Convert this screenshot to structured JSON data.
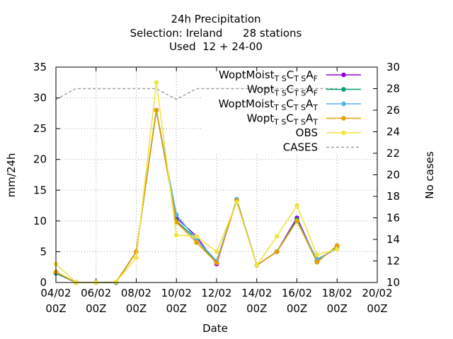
{
  "chart_data": {
    "type": "line",
    "title": [
      "24h Precipitation",
      "Selection: Ireland      28 stations",
      "Used  12 + 24-00"
    ],
    "xlabel": "Date",
    "ylabel": "mm/24h",
    "y2label": "No cases",
    "ylim": [
      0,
      35
    ],
    "y2lim": [
      10,
      30
    ],
    "xlim": [
      0,
      16
    ],
    "xticks": [
      {
        "x": 0,
        "l1": "04/02",
        "l2": "00Z"
      },
      {
        "x": 2,
        "l1": "06/02",
        "l2": "00Z"
      },
      {
        "x": 4,
        "l1": "08/02",
        "l2": "00Z"
      },
      {
        "x": 6,
        "l1": "10/02",
        "l2": "00Z"
      },
      {
        "x": 8,
        "l1": "12/02",
        "l2": "00Z"
      },
      {
        "x": 10,
        "l1": "14/02",
        "l2": "00Z"
      },
      {
        "x": 12,
        "l1": "16/02",
        "l2": "00Z"
      },
      {
        "x": 14,
        "l1": "18/02",
        "l2": "00Z"
      },
      {
        "x": 16,
        "l1": "20/02",
        "l2": "00Z"
      }
    ],
    "yticks": [
      0,
      5,
      10,
      15,
      20,
      25,
      30,
      35
    ],
    "y2ticks": [
      10,
      12,
      14,
      16,
      18,
      20,
      22,
      24,
      26,
      28,
      30
    ],
    "x": [
      0,
      1,
      2,
      3,
      4,
      5,
      6,
      7,
      8,
      9,
      10,
      11,
      12,
      13,
      14
    ],
    "series": [
      {
        "name": "WoptMoist",
        "sub1": "T S",
        "mid": "C",
        "sub2": "T S",
        "end": "A",
        "sub3": "F",
        "color": "#9400d3",
        "values": [
          1.5,
          0.0,
          0.0,
          0.0,
          5.0,
          28.0,
          10.5,
          7.5,
          3.0,
          13.5,
          2.8,
          5.0,
          10.5,
          3.5,
          5.8
        ]
      },
      {
        "name": "Wopt",
        "sub1": "T S",
        "mid": "C",
        "sub2": "T S",
        "end": "A",
        "sub3": "F",
        "color": "#009e73",
        "values": [
          1.5,
          0.0,
          0.0,
          0.0,
          5.0,
          28.0,
          10.0,
          7.0,
          3.2,
          13.5,
          2.8,
          5.0,
          10.2,
          3.5,
          5.8
        ]
      },
      {
        "name": "WoptMoist",
        "sub1": "T S",
        "mid": "C",
        "sub2": "T S",
        "end": "A",
        "sub3": "T",
        "color": "#56b4e9",
        "values": [
          1.7,
          0.0,
          0.0,
          0.1,
          5.0,
          28.0,
          11.0,
          7.0,
          3.5,
          13.5,
          2.8,
          5.0,
          10.0,
          3.8,
          5.5
        ]
      },
      {
        "name": "Wopt",
        "sub1": "T S",
        "mid": "C",
        "sub2": "T S",
        "end": "A",
        "sub3": "T",
        "color": "#e69f00",
        "values": [
          1.7,
          0.0,
          0.0,
          0.1,
          5.0,
          28.0,
          9.8,
          6.5,
          3.2,
          13.3,
          2.8,
          5.0,
          10.0,
          3.3,
          6.0
        ]
      },
      {
        "name": "OBS",
        "color": "#f0e442",
        "values": [
          3.0,
          0.0,
          0.0,
          0.1,
          4.0,
          32.5,
          7.7,
          7.5,
          5.0,
          13.0,
          2.8,
          7.5,
          12.5,
          4.5,
          5.4
        ]
      }
    ],
    "cases": {
      "name": "CASES",
      "color": "#a0a0a0",
      "axis": "y2",
      "values": [
        27,
        28,
        28,
        28,
        28,
        28,
        27,
        28,
        28,
        28,
        28,
        28,
        28,
        28,
        28
      ]
    },
    "grid": true,
    "legend_position": "top-right"
  }
}
